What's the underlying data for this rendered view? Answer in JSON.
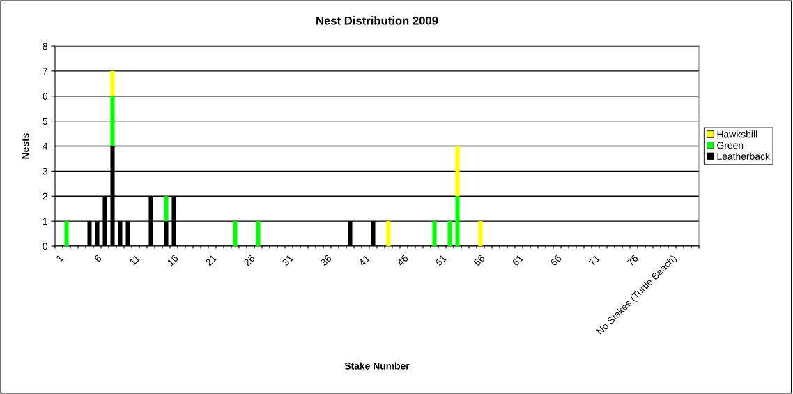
{
  "chart_data": {
    "type": "bar",
    "title": "Nest Distribution 2009",
    "xlabel": "Stake Number",
    "ylabel": "Nests",
    "categories": [
      "1",
      null,
      null,
      null,
      null,
      "6",
      null,
      null,
      null,
      null,
      "11",
      null,
      null,
      null,
      null,
      "16",
      null,
      null,
      null,
      null,
      "21",
      null,
      null,
      null,
      null,
      "26",
      null,
      null,
      null,
      null,
      "31",
      null,
      null,
      null,
      null,
      "36",
      null,
      null,
      null,
      null,
      "41",
      null,
      null,
      null,
      null,
      "46",
      null,
      null,
      null,
      null,
      "51",
      null,
      null,
      null,
      null,
      "56",
      null,
      null,
      null,
      null,
      "61",
      null,
      null,
      null,
      null,
      "66",
      null,
      null,
      null,
      null,
      "71",
      null,
      null,
      null,
      null,
      "76",
      null,
      null,
      null,
      null,
      "No Stakes (Turtle Beach)",
      null,
      null,
      null
    ],
    "stacked": true,
    "series": [
      {
        "name": "Leatherback",
        "color": "#000000",
        "values": [
          0,
          0,
          0,
          0,
          1,
          1,
          2,
          4,
          1,
          1,
          0,
          0,
          2,
          0,
          1,
          2,
          0,
          0,
          0,
          0,
          0,
          0,
          0,
          0,
          0,
          0,
          0,
          0,
          0,
          0,
          0,
          0,
          0,
          0,
          0,
          0,
          0,
          0,
          1,
          0,
          0,
          1,
          0,
          0,
          0,
          0,
          0,
          0,
          0,
          0,
          0,
          0,
          0,
          0,
          0,
          0,
          0,
          0,
          0,
          0,
          0,
          0,
          0,
          0,
          0,
          0,
          0,
          0,
          0,
          0,
          0,
          0,
          0,
          0,
          0,
          0,
          0,
          0,
          0,
          0,
          0,
          0,
          0,
          0
        ]
      },
      {
        "name": "Green",
        "color": "#00ff00",
        "values": [
          0,
          1,
          0,
          0,
          0,
          0,
          0,
          2,
          0,
          0,
          0,
          0,
          0,
          0,
          1,
          0,
          0,
          0,
          0,
          0,
          0,
          0,
          0,
          1,
          0,
          0,
          1,
          0,
          0,
          0,
          0,
          0,
          0,
          0,
          0,
          0,
          0,
          0,
          0,
          0,
          0,
          0,
          0,
          0,
          0,
          0,
          0,
          0,
          0,
          1,
          0,
          1,
          2,
          0,
          0,
          0,
          0,
          0,
          0,
          0,
          0,
          0,
          0,
          0,
          0,
          0,
          0,
          0,
          0,
          0,
          0,
          0,
          0,
          0,
          0,
          0,
          0,
          0,
          0,
          0,
          0,
          0,
          0,
          0
        ]
      },
      {
        "name": "Hawksbill",
        "color": "#ffff00",
        "values": [
          0,
          0,
          0,
          0,
          0,
          0,
          0,
          1,
          0,
          0,
          0,
          0,
          0,
          0,
          0,
          0,
          0,
          0,
          0,
          0,
          0,
          0,
          0,
          0,
          0,
          0,
          0,
          0,
          0,
          0,
          0,
          0,
          0,
          0,
          0,
          0,
          0,
          0,
          0,
          0,
          0,
          0,
          0,
          1,
          0,
          0,
          0,
          0,
          0,
          0,
          0,
          0,
          2,
          0,
          0,
          1,
          0,
          0,
          0,
          0,
          0,
          0,
          0,
          0,
          0,
          0,
          0,
          0,
          0,
          0,
          0,
          0,
          0,
          0,
          0,
          0,
          0,
          0,
          0,
          0,
          0,
          0,
          0,
          0
        ]
      }
    ],
    "ylim": [
      0,
      8
    ],
    "yticks": [
      0,
      1,
      2,
      3,
      4,
      5,
      6,
      7,
      8
    ],
    "grid": "y",
    "legend": "right"
  }
}
